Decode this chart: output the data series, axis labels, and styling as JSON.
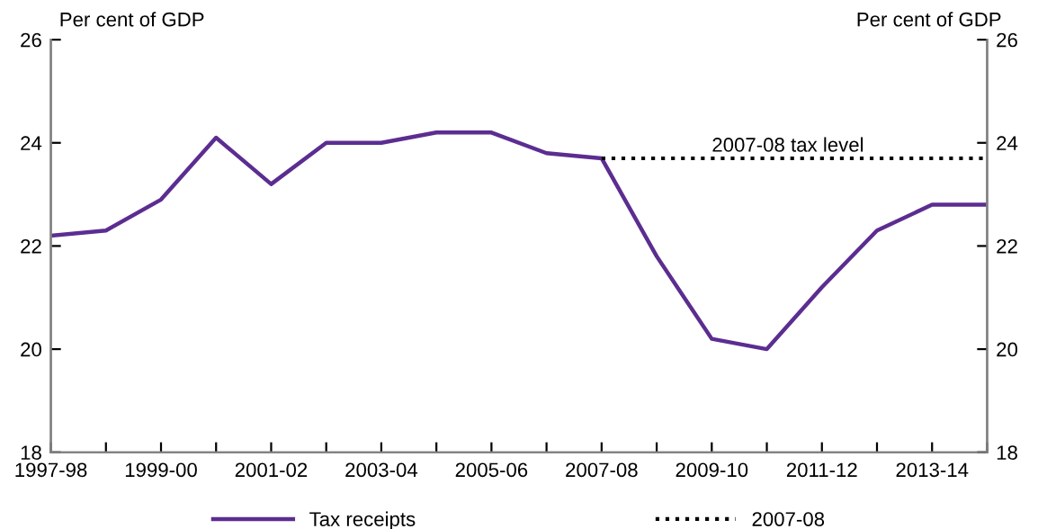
{
  "chart_data": {
    "type": "line",
    "categories": [
      "1997-98",
      null,
      "1999-00",
      null,
      "2001-02",
      null,
      "2003-04",
      null,
      "2005-06",
      null,
      "2007-08",
      null,
      "2009-10",
      null,
      "2011-12",
      null,
      "2013-14",
      null
    ],
    "series": [
      {
        "name": "Tax receipts",
        "color": "#5c2d91",
        "line_style": "solid",
        "values": [
          22.2,
          22.3,
          22.9,
          24.1,
          23.2,
          24.0,
          24.0,
          24.2,
          24.2,
          23.8,
          23.7,
          21.8,
          20.2,
          20.0,
          21.2,
          22.3,
          22.8,
          22.8
        ]
      },
      {
        "name": "2007-08",
        "color": "#000000",
        "line_style": "dotted",
        "values": [
          null,
          null,
          null,
          null,
          null,
          null,
          null,
          null,
          null,
          null,
          23.7,
          23.7,
          23.7,
          23.7,
          23.7,
          23.7,
          23.7,
          23.7
        ]
      }
    ],
    "ylabel": "Per cent of GDP",
    "y2label": "Per cent of GDP",
    "ylim": [
      18,
      26
    ],
    "yticks": [
      18,
      20,
      22,
      24,
      26
    ],
    "y2lim": [
      18,
      26
    ],
    "y2ticks": [
      18,
      20,
      22,
      24,
      26
    ],
    "annotations": [
      {
        "text": "2007-08 tax level",
        "x": "2009-10",
        "y": 23.7
      }
    ],
    "grid": false,
    "legend": "bottom",
    "marker": "none"
  }
}
